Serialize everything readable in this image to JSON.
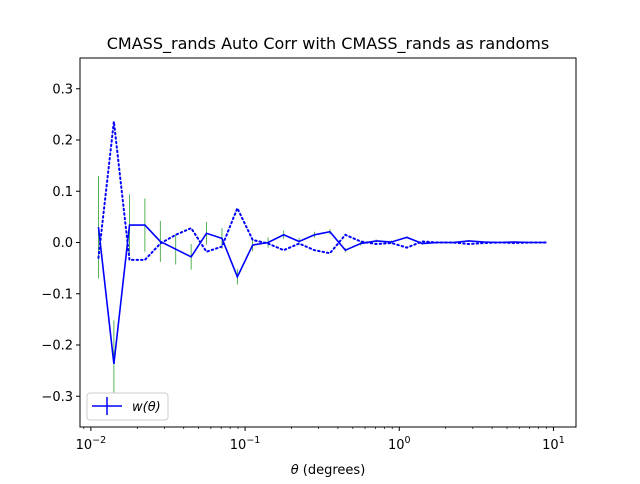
{
  "chart_data": {
    "type": "line",
    "title": "CMASS_rands Auto Corr with CMASS_rands as randoms",
    "xlabel_symbol": "θ",
    "xlabel_unit": " (degrees)",
    "ylabel": "",
    "xscale": "log",
    "xlim": [
      0.0085,
      14
    ],
    "ylim": [
      -0.36,
      0.36
    ],
    "grid": false,
    "legend_position": "lower left",
    "y_ticks": [
      -0.3,
      -0.2,
      -0.1,
      0.0,
      0.1,
      0.2,
      0.3
    ],
    "y_tick_labels": [
      "−0.3",
      "−0.2",
      "−0.1",
      "0.0",
      "0.1",
      "0.2",
      "0.3"
    ],
    "x_major_ticks": [
      {
        "value": 0.01,
        "base": "10",
        "exp": "−2"
      },
      {
        "value": 0.1,
        "base": "10",
        "exp": "−1"
      },
      {
        "value": 1,
        "base": "10",
        "exp": "0"
      },
      {
        "value": 10,
        "base": "10",
        "exp": "1"
      }
    ],
    "x": [
      0.0112,
      0.0141,
      0.0178,
      0.0224,
      0.0282,
      0.0355,
      0.0447,
      0.0562,
      0.0708,
      0.0891,
      0.112,
      0.141,
      0.178,
      0.224,
      0.282,
      0.355,
      0.447,
      0.562,
      0.708,
      0.891,
      1.12,
      1.41,
      1.78,
      2.24,
      2.82,
      3.55,
      4.47,
      5.62,
      7.08,
      8.91
    ],
    "series": [
      {
        "name": "w(θ)",
        "style": "solid",
        "color": "#0000ff",
        "values": [
          0.03,
          -0.237,
          0.034,
          0.034,
          0.002,
          -0.013,
          -0.028,
          0.018,
          0.008,
          -0.067,
          -0.005,
          0.0,
          0.015,
          0.002,
          0.015,
          0.021,
          -0.015,
          -0.002,
          0.003,
          0.001,
          0.01,
          -0.002,
          0.0,
          0.0,
          0.003,
          0.001,
          0.0,
          0.001,
          0.0,
          0.0
        ],
        "errors": [
          0.1,
          0.085,
          0.06,
          0.052,
          0.04,
          0.03,
          0.025,
          0.022,
          0.02,
          0.015,
          0.012,
          0.01,
          0.008,
          0.007,
          0.006,
          0.005,
          0.004,
          0.004,
          0.003,
          0.003,
          0.002,
          0.002,
          0.002,
          0.002,
          0.002,
          0.001,
          0.001,
          0.001,
          0.001,
          0.001
        ]
      },
      {
        "name": "",
        "style": "dotted",
        "color": "#0000ff",
        "values": [
          -0.03,
          0.236,
          -0.034,
          -0.034,
          -0.002,
          0.015,
          0.028,
          -0.018,
          -0.008,
          0.067,
          0.005,
          -0.002,
          -0.015,
          -0.002,
          -0.015,
          -0.021,
          0.015,
          0.002,
          -0.003,
          -0.001,
          -0.01,
          0.002,
          0.0,
          0.0,
          -0.003,
          -0.001,
          0.0,
          -0.001,
          0.0,
          0.0
        ]
      }
    ],
    "errorbar_color": "#2ca02c",
    "legend": [
      {
        "label": "w(θ)",
        "style": "solid",
        "color": "#0000ff",
        "errorbar": true
      }
    ]
  }
}
